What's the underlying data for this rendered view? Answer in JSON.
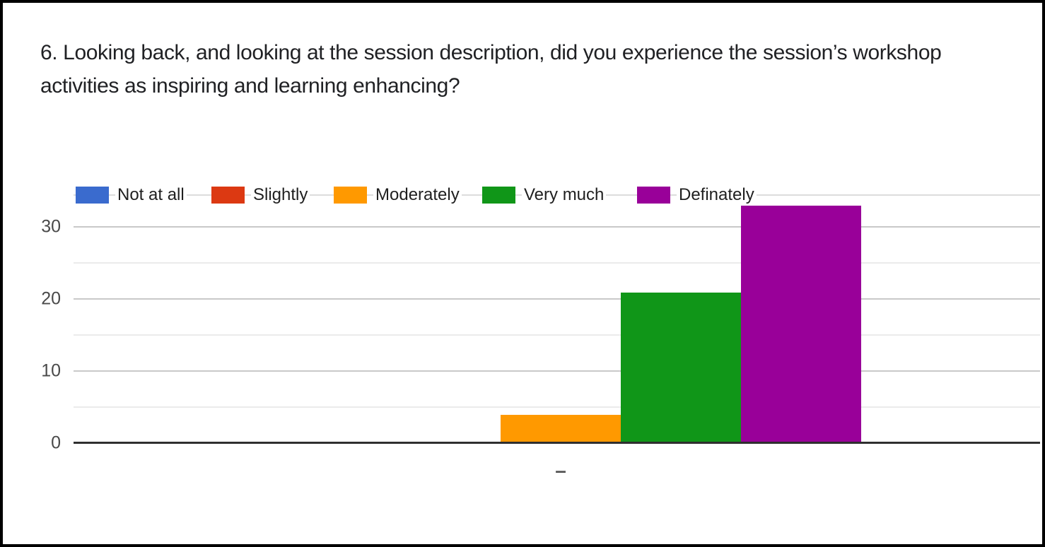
{
  "title_lines": [
    "6. Looking back, and looking at the session description, did you experience the session’s workshop",
    "activities as inspiring and learning enhancing?"
  ],
  "chart_data": {
    "type": "bar",
    "title": "6. Looking back, and looking at the session description, did you experience the session’s workshop activities as inspiring and learning enhancing?",
    "categories": [
      "–"
    ],
    "series": [
      {
        "name": "Not at all",
        "color": "#3A6BCE",
        "values": [
          0
        ]
      },
      {
        "name": "Slightly",
        "color": "#DC3912",
        "values": [
          0
        ]
      },
      {
        "name": "Moderately",
        "color": "#FF9900",
        "values": [
          4
        ]
      },
      {
        "name": "Very much",
        "color": "#109618",
        "values": [
          21
        ]
      },
      {
        "name": "Definately",
        "color": "#990099",
        "values": [
          33
        ]
      }
    ],
    "y_ticks": [
      0,
      10,
      20,
      30
    ],
    "y_minor_ticks": [
      5,
      15,
      25,
      35
    ],
    "ylim": [
      0,
      35
    ],
    "xlabel": "",
    "ylabel": "",
    "grid": true,
    "legend_position": "top"
  },
  "colors": {
    "title_text": "#202124",
    "axis_label_text": "#4a4a4a",
    "legend_text": "#1f1f1f",
    "axis_line": "#2f2f2f",
    "major_gridline": "#c9c9c9",
    "minor_gridline": "#ebebeb",
    "background": "#ffffff",
    "frame_border": "#000000"
  }
}
